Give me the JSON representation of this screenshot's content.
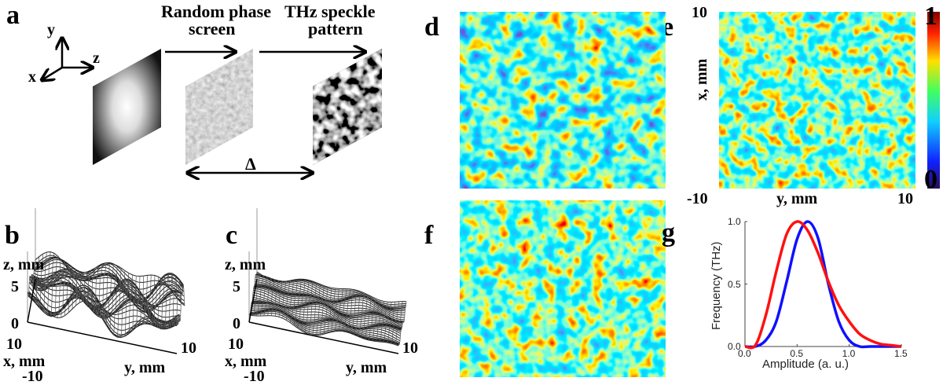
{
  "panels": {
    "a": {
      "label": "a",
      "axis_x": "x",
      "axis_y": "y",
      "axis_z": "z",
      "screen_label_1": "Random phase",
      "screen_label_2": "screen",
      "speckle_label_1": "THz speckle",
      "speckle_label_2": "pattern",
      "distance": "Δ"
    },
    "b": {
      "label": "b",
      "z_axis": "z, mm",
      "z_ticks": [
        "5",
        "0"
      ],
      "x_axis": "x, mm",
      "x_ticks": [
        "10",
        "-10"
      ],
      "y_axis": "y, mm",
      "y_tick": "10"
    },
    "c": {
      "label": "c",
      "z_axis": "z, mm",
      "z_ticks": [
        "5",
        "0"
      ],
      "x_axis": "x, mm",
      "x_ticks": [
        "10",
        "-10"
      ],
      "y_axis": "y, mm",
      "y_tick": "10"
    },
    "d": {
      "label": "d"
    },
    "e": {
      "label": "e",
      "x_axis": "x, mm",
      "x_top": "10",
      "x_bottom": "-10",
      "y_axis": "y, mm",
      "y_right": "10",
      "colorbar_max": "1",
      "colorbar_min": "0"
    },
    "f": {
      "label": "f"
    },
    "g": {
      "label": "g"
    }
  },
  "colors": {
    "blue_curve": "#1010ff",
    "red_curve": "#ff1010"
  },
  "chart_data": {
    "type": "line",
    "title": "",
    "xlabel": "Amplitude (a. u.)",
    "ylabel": "Frequency (THz)",
    "xlim": [
      0,
      1.5
    ],
    "ylim": [
      0,
      1.0
    ],
    "xticks": [
      "0.0",
      "0.5",
      "1.0",
      "1.5"
    ],
    "yticks": [
      "0.0",
      "0.5",
      "1.0"
    ],
    "x": [
      0,
      0.1,
      0.2,
      0.3,
      0.4,
      0.5,
      0.6,
      0.7,
      0.8,
      0.9,
      1.0,
      1.1,
      1.2,
      1.3,
      1.4,
      1.5
    ],
    "series": [
      {
        "name": "blue",
        "color": "#1010ff",
        "values": [
          0,
          0.0,
          0.05,
          0.2,
          0.52,
          0.86,
          1.0,
          0.87,
          0.5,
          0.2,
          0.05,
          0.0,
          0,
          0,
          0,
          0
        ]
      },
      {
        "name": "red",
        "color": "#ff1010",
        "values": [
          0,
          0.01,
          0.25,
          0.6,
          0.9,
          1.0,
          0.93,
          0.75,
          0.52,
          0.33,
          0.2,
          0.1,
          0.05,
          0.02,
          0.01,
          0.0
        ]
      }
    ]
  }
}
